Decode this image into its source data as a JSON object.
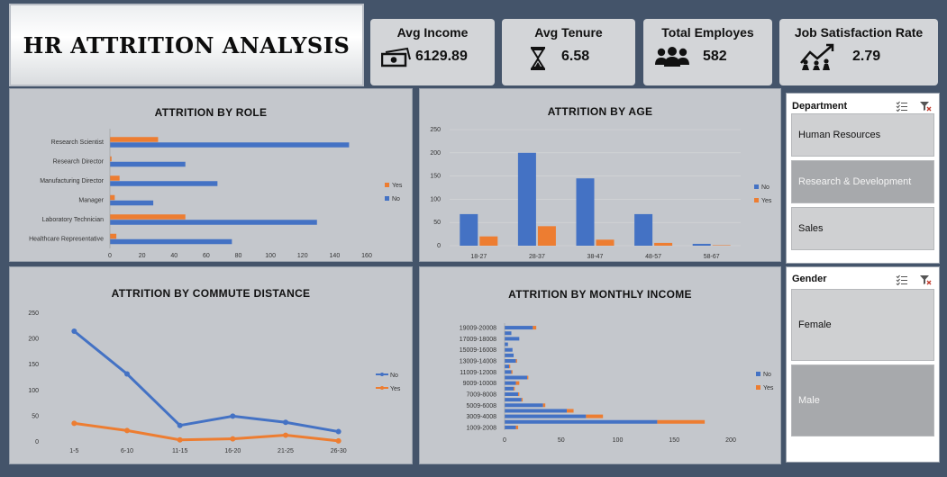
{
  "dashboard": {
    "title": "HR ATTRITION ANALYSIS"
  },
  "kpis": [
    {
      "label": "Avg Income",
      "value": "6129.89",
      "icon": "money-icon"
    },
    {
      "label": "Avg Tenure",
      "value": "6.58",
      "icon": "hourglass-icon"
    },
    {
      "label": "Total Employes",
      "value": "582",
      "icon": "people-icon"
    },
    {
      "label": "Job Satisfaction Rate",
      "value": "2.79",
      "icon": "growth-chart-icon"
    }
  ],
  "colors": {
    "no": "#4472c4",
    "yes": "#ed7d31",
    "background": "#44546a",
    "panel": "#c4c7cc"
  },
  "slicers": {
    "department": {
      "title": "Department",
      "items": [
        {
          "label": "Human Resources",
          "selected": false
        },
        {
          "label": "Research & Development",
          "selected": true
        },
        {
          "label": "Sales",
          "selected": false
        }
      ]
    },
    "gender": {
      "title": "Gender",
      "items": [
        {
          "label": "Female",
          "selected": false
        },
        {
          "label": "Male",
          "selected": true
        }
      ]
    }
  },
  "chart_data": [
    {
      "type": "bar",
      "orientation": "horizontal",
      "title": "ATTRITION BY ROLE",
      "categories": [
        "Research Scientist",
        "Research Director",
        "Manufacturing Director",
        "Manager",
        "Laboratory Technician",
        "Healthcare Representative"
      ],
      "series": [
        {
          "name": "Yes",
          "values": [
            30,
            1,
            6,
            3,
            47,
            4
          ]
        },
        {
          "name": "No",
          "values": [
            149,
            47,
            67,
            27,
            129,
            76
          ]
        }
      ],
      "xticks": [
        "0",
        "20",
        "40",
        "60",
        "80",
        "100",
        "120",
        "140",
        "160"
      ],
      "xlim": [
        0,
        160
      ],
      "legend": "right"
    },
    {
      "type": "bar",
      "title": "ATTRITION BY AGE",
      "categories": [
        "18-27",
        "28-37",
        "38-47",
        "48-57",
        "58-67"
      ],
      "series": [
        {
          "name": "No",
          "values": [
            68,
            200,
            145,
            68,
            4
          ]
        },
        {
          "name": "Yes",
          "values": [
            20,
            42,
            13,
            6,
            1
          ]
        }
      ],
      "yticks": [
        "0",
        "50",
        "100",
        "150",
        "200",
        "250"
      ],
      "ylim": [
        0,
        250
      ],
      "legend": "right"
    },
    {
      "type": "line",
      "title": "ATTRITION BY COMMUTE DISTANCE",
      "categories": [
        "1-5",
        "6-10",
        "11-15",
        "16-20",
        "21-25",
        "26-30"
      ],
      "series": [
        {
          "name": "No",
          "values": [
            215,
            132,
            32,
            50,
            38,
            20
          ]
        },
        {
          "name": "Yes",
          "values": [
            36,
            22,
            4,
            6,
            13,
            2
          ]
        }
      ],
      "yticks": [
        "0",
        "50",
        "100",
        "150",
        "200",
        "250"
      ],
      "ylim": [
        0,
        250
      ],
      "legend": "right"
    },
    {
      "type": "bar",
      "orientation": "horizontal",
      "stacked": true,
      "title": "ATTRITION  BY MONTHLY INCOME",
      "categories": [
        "1009-2008",
        "2009-3008",
        "3009-4008",
        "4009-5008",
        "5009-6008",
        "6009-7008",
        "7009-8008",
        "8009-9008",
        "9009-10008",
        "10009-11008",
        "11009-12008",
        "12009-13008",
        "13009-14008",
        "14009-15008",
        "15009-16008",
        "16009-17008",
        "17009-18008",
        "18009-19008",
        "19009-20008"
      ],
      "category_labels": [
        "1009-2008",
        "",
        "3009-4008",
        "",
        "5009-6008",
        "",
        "7009-8008",
        "",
        "9009-10008",
        "",
        "11009-12008",
        "",
        "13009-14008",
        "",
        "15009-16008",
        "",
        "17009-18008",
        "",
        "19009-20008"
      ],
      "series": [
        {
          "name": "No",
          "values": [
            10,
            135,
            72,
            55,
            34,
            15,
            12,
            8,
            10,
            20,
            6,
            4,
            10,
            8,
            7,
            3,
            13,
            6,
            25
          ]
        },
        {
          "name": "Yes",
          "values": [
            2,
            42,
            15,
            6,
            2,
            1,
            1,
            1,
            3,
            1,
            1,
            1,
            1,
            0,
            0,
            0,
            0,
            0,
            3
          ]
        }
      ],
      "xticks": [
        "0",
        "50",
        "100",
        "150",
        "200"
      ],
      "xlim": [
        0,
        200
      ],
      "legend": "right"
    }
  ]
}
